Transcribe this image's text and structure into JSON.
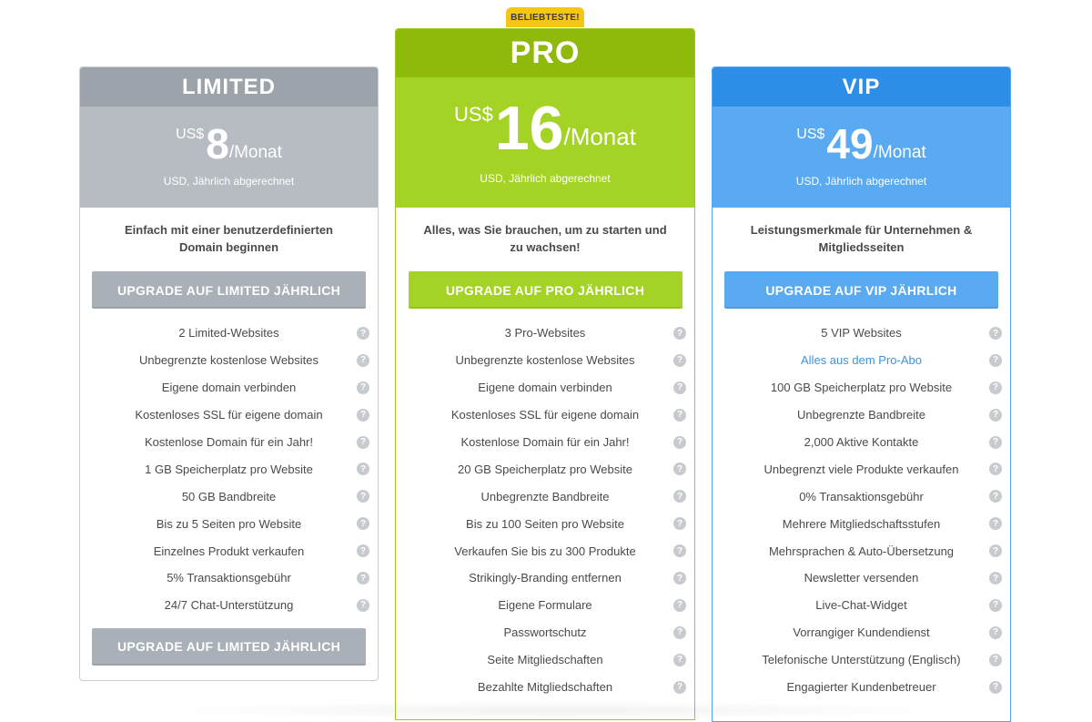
{
  "badge": "BELIEBTESTE!",
  "plans": {
    "limited": {
      "name": "LIMITED",
      "currency": "US$",
      "amount": "8",
      "period": "/Monat",
      "billing": "USD, Jährlich abgerechnet",
      "description": "Einfach mit einer benutzerdefinierten Domain beginnen",
      "cta": "UPGRADE AUF LIMITED JÄHRLICH",
      "features": [
        "2 Limited-Websites",
        "Unbegrenzte kostenlose Websites",
        "Eigene domain verbinden",
        "Kostenloses SSL für eigene domain",
        "Kostenlose Domain für ein Jahr!",
        "1 GB Speicherplatz pro Website",
        "50 GB Bandbreite",
        "Bis zu 5 Seiten pro Website",
        "Einzelnes Produkt verkaufen",
        "5% Transaktionsgebühr",
        "24/7 Chat-Unterstützung"
      ]
    },
    "pro": {
      "name": "PRO",
      "currency": "US$",
      "amount": "16",
      "period": "/Monat",
      "billing": "USD, Jährlich abgerechnet",
      "description": "Alles, was Sie brauchen, um zu starten und zu wachsen!",
      "cta": "UPGRADE AUF PRO JÄHRLICH",
      "features": [
        "3 Pro-Websites",
        "Unbegrenzte kostenlose Websites",
        "Eigene domain verbinden",
        "Kostenloses SSL für eigene domain",
        "Kostenlose Domain für ein Jahr!",
        "20 GB Speicherplatz pro Website",
        "Unbegrenzte Bandbreite",
        "Bis zu 100 Seiten pro Website",
        "Verkaufen Sie bis zu 300 Produkte",
        "Strikingly-Branding entfernen",
        "Eigene Formulare",
        "Passwortschutz",
        "Seite Mitgliedschaften",
        "Bezahlte Mitgliedschaften"
      ]
    },
    "vip": {
      "name": "VIP",
      "currency": "US$",
      "amount": "49",
      "period": "/Monat",
      "billing": "USD, Jährlich abgerechnet",
      "description": "Leistungsmerkmale für Unternehmen & Mitgliedsseiten",
      "cta": "UPGRADE AUF VIP JÄHRLICH",
      "features": [
        "5 VIP Websites",
        "Alles aus dem Pro-Abo",
        "100 GB Speicherplatz pro Website",
        "Unbegrenzte Bandbreite",
        "2,000 Aktive Kontakte",
        "Unbegrenzt viele Produkte verkaufen",
        "0% Transaktionsgebühr",
        "Mehrere Mitgliedschaftsstufen",
        "Mehrsprachen & Auto-Übersetzung",
        "Newsletter versenden",
        "Live-Chat-Widget",
        "Vorrangiger Kundendienst",
        "Telefonische Unterstützung (Englisch)",
        "Engagierter Kundenbetreuer"
      ]
    }
  },
  "help_icon_glyph": "?",
  "colors": {
    "limited_accent": "#9ca3aa",
    "pro_accent": "#8fba0c",
    "vip_accent": "#2d8ee8",
    "badge": "#f5c518",
    "link": "#3d94e0"
  }
}
